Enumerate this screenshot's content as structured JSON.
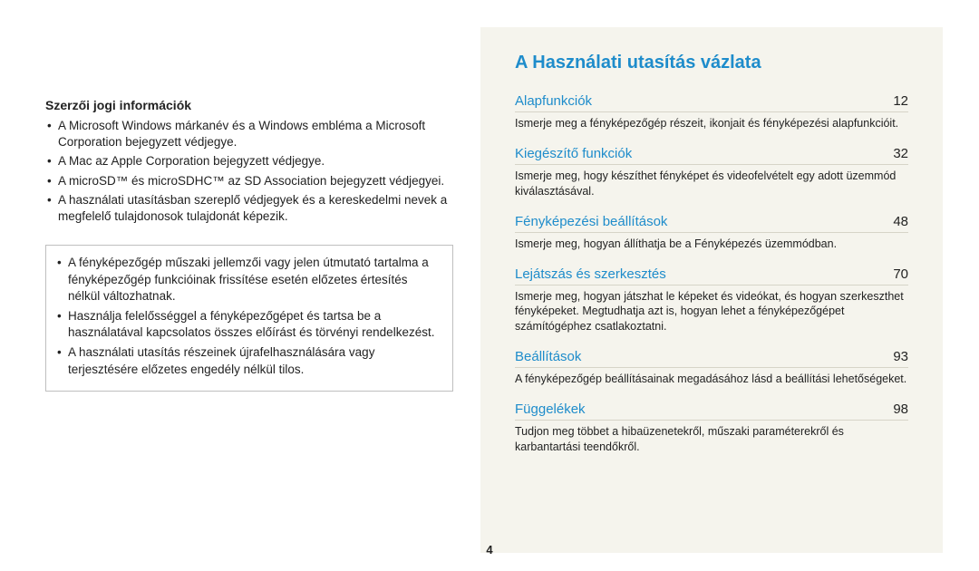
{
  "left": {
    "copyright_title": "Szerzői jogi információk",
    "bullets": [
      "A Microsoft Windows márkanév és a Windows embléma a Microsoft Corporation bejegyzett védjegye.",
      "A Mac az Apple Corporation bejegyzett védjegye.",
      "A microSD™ és microSDHC™ az SD Association bejegyzett védjegyei.",
      "A használati utasításban szereplő védjegyek és a kereskedelmi nevek a megfelelő tulajdonosok tulajdonát képezik."
    ],
    "note_bullets": [
      "A fényképezőgép műszaki jellemzői vagy jelen útmutató tartalma a fényképezőgép funkcióinak frissítése esetén előzetes értesítés nélkül változhatnak.",
      "Használja felelősséggel a fényképezőgépet és tartsa be a használatával kapcsolatos összes előírást és törvényi rendelkezést.",
      "A használati utasítás részeinek újrafelhasználására vagy terjesztésére előzetes engedély nélkül tilos."
    ]
  },
  "right": {
    "title": "A Használati utasítás vázlata",
    "items": [
      {
        "label": "Alapfunkciók",
        "page": "12",
        "desc": "Ismerje meg a fényképezőgép részeit, ikonjait és fényképezési alapfunkcióit."
      },
      {
        "label": "Kiegészítő funkciók",
        "page": "32",
        "desc": "Ismerje meg, hogy készíthet fényképet és videofelvételt egy adott üzemmód kiválasztásával."
      },
      {
        "label": "Fényképezési beállítások",
        "page": "48",
        "desc": "Ismerje meg, hogyan állíthatja be a Fényképezés üzemmódban."
      },
      {
        "label": "Lejátszás és szerkesztés",
        "page": "70",
        "desc": "Ismerje meg, hogyan játszhat le képeket és videókat, és hogyan szerkeszthet fényképeket. Megtudhatja azt is, hogyan lehet a fényképezőgépet számítógéphez csatlakoztatni."
      },
      {
        "label": "Beállítások",
        "page": "93",
        "desc": "A fényképezőgép beállításainak megadásához lásd a beállítási lehetőségeket."
      },
      {
        "label": "Függelékek",
        "page": "98",
        "desc": "Tudjon meg többet a hibaüzenetekről, műszaki paraméterekről és karbantartási teendőkről."
      }
    ]
  },
  "page_number": "4",
  "colors": {
    "link": "#1e8ccb",
    "right_bg": "#f5f4ed",
    "divider": "#d6d4c8",
    "note_border": "#bfbfbf",
    "text": "#222222"
  }
}
